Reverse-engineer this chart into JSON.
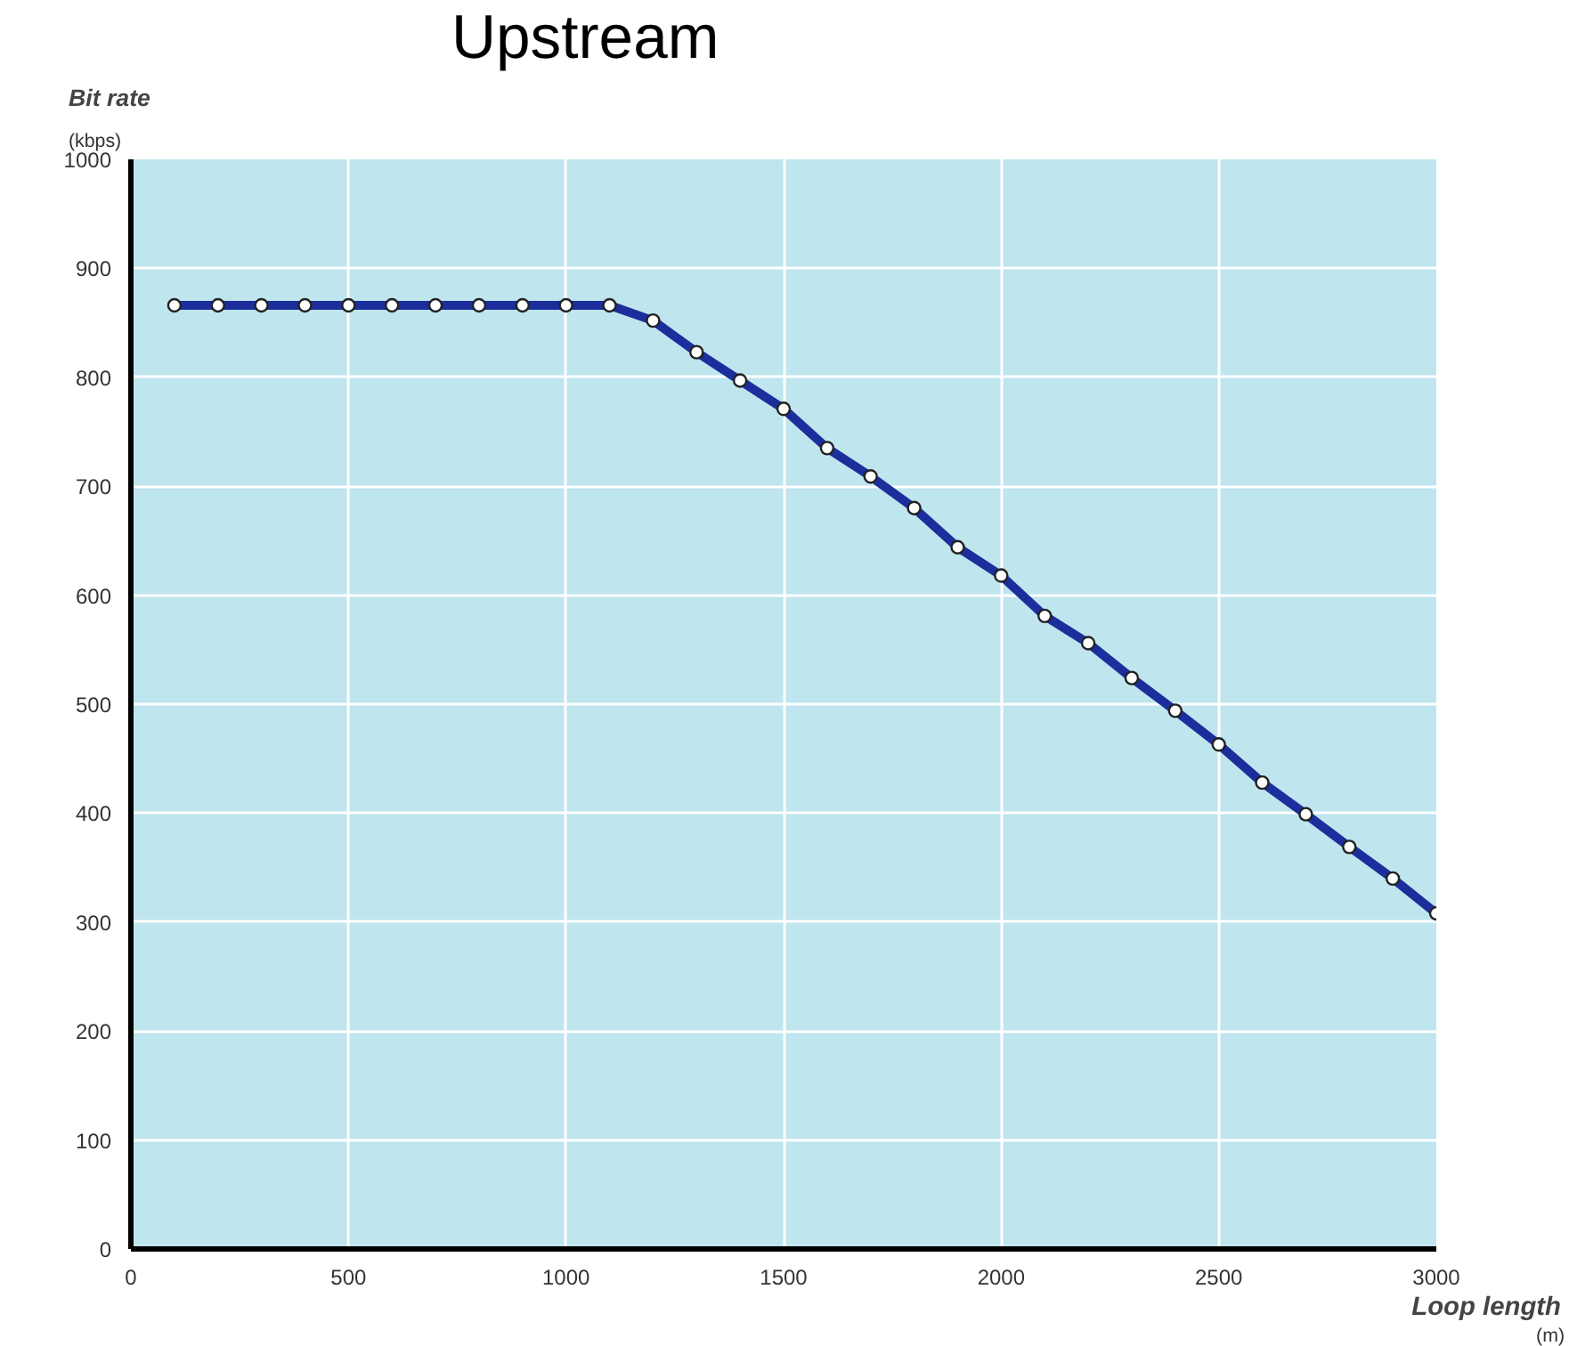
{
  "chart_data": {
    "type": "line",
    "title": "Upstream",
    "xlabel": "Loop length",
    "ylabel": "Bit rate",
    "annotations": [
      "(kbps)",
      "(m)"
    ],
    "x": [
      100,
      200,
      300,
      400,
      500,
      600,
      700,
      800,
      900,
      1000,
      1100,
      1200,
      1300,
      1400,
      1500,
      1600,
      1700,
      1800,
      1900,
      2000,
      2100,
      2200,
      2300,
      2400,
      2500,
      2600,
      2700,
      2800,
      2900,
      3000
    ],
    "series": [
      {
        "color": "#1c2e9c",
        "values": [
          866,
          866,
          866,
          866,
          866,
          866,
          866,
          866,
          866,
          866,
          866,
          852,
          823,
          797,
          771,
          735,
          709,
          680,
          644,
          618,
          581,
          556,
          524,
          494,
          463,
          428,
          399,
          369,
          340,
          308
        ]
      }
    ],
    "xlim": [
      0,
      3000
    ],
    "ylim": [
      0,
      1000
    ],
    "xticks": [
      0,
      500,
      1000,
      1500,
      2000,
      2500,
      3000
    ],
    "yticks": [
      0,
      100,
      200,
      300,
      400,
      500,
      600,
      700,
      800,
      900,
      1000
    ],
    "grid": true,
    "marker": "circle",
    "line_style": "solid"
  }
}
